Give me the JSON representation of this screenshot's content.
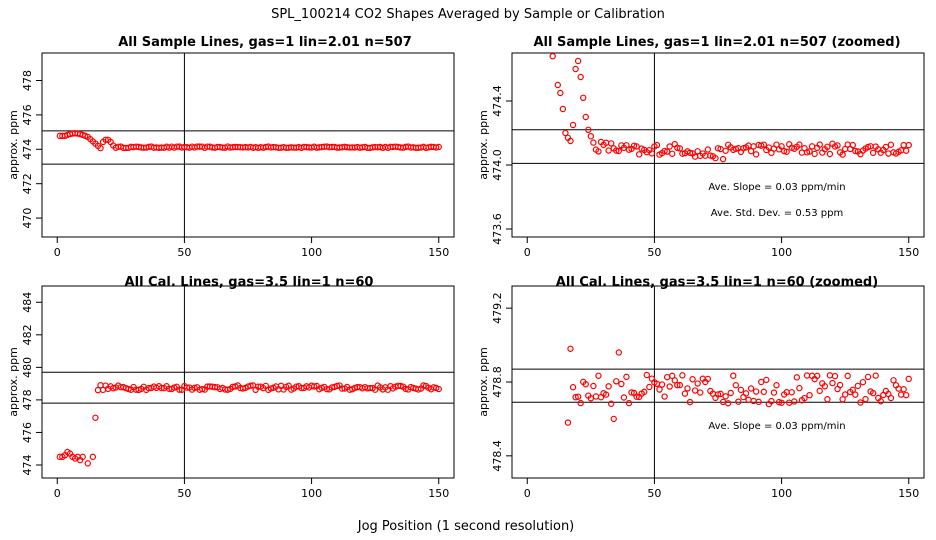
{
  "figure": {
    "title": "SPL_100214  CO2 Shapes Averaged by Sample or Calibration",
    "xlabel": "Jog Position (1 second resolution)"
  },
  "colors": {
    "points": "#ff0000",
    "lines": "#000000"
  },
  "chart_data": [
    {
      "type": "scatter",
      "title": "All Sample Lines, gas=1 lin=2.01 n=507",
      "ylabel": "approx. ppm",
      "xlim": [
        -6,
        156
      ],
      "ylim": [
        468.9,
        479.6
      ],
      "xticks": [
        "0",
        "50",
        "100",
        "150"
      ],
      "xtick_values": [
        0,
        50,
        100,
        150
      ],
      "yticks": [
        "470",
        "472",
        "474",
        "476",
        "478"
      ],
      "ytick_values": [
        470,
        472,
        474,
        476,
        478
      ],
      "vline": 50,
      "hlines": [
        475.07,
        473.14
      ],
      "annotations": [],
      "series_kind": "sample_full"
    },
    {
      "type": "scatter",
      "title": "All Sample Lines, gas=1 lin=2.01 n=507 (zoomed)",
      "ylabel": "approx. ppm",
      "xlim": [
        -6,
        156
      ],
      "ylim": [
        473.55,
        474.7
      ],
      "xticks": [
        "0",
        "50",
        "100",
        "150"
      ],
      "xtick_values": [
        0,
        50,
        100,
        150
      ],
      "yticks": [
        "473.6",
        "474.0",
        "474.4"
      ],
      "ytick_values": [
        473.6,
        474.0,
        474.4
      ],
      "vline": 50,
      "hlines": [
        474.22,
        474.01
      ],
      "annotations": [
        "Ave. Slope =  0.03  ppm/min",
        "Ave. Std. Dev. =  0.53  ppm"
      ],
      "series_kind": "sample_zoom"
    },
    {
      "type": "scatter",
      "title": "All Cal. Lines, gas=3.5 lin=1 n=60",
      "ylabel": "approx. ppm",
      "xlim": [
        -6,
        156
      ],
      "ylim": [
        473.2,
        485.0
      ],
      "xticks": [
        "0",
        "50",
        "100",
        "150"
      ],
      "xtick_values": [
        0,
        50,
        100,
        150
      ],
      "yticks": [
        "474",
        "476",
        "478",
        "480",
        "482",
        "484"
      ],
      "ytick_values": [
        474,
        476,
        478,
        480,
        482,
        484
      ],
      "vline": 50,
      "hlines": [
        479.7,
        477.8
      ],
      "annotations": [],
      "series_kind": "cal_full"
    },
    {
      "type": "scatter",
      "title": "All Cal. Lines, gas=3.5 lin=1 n=60 (zoomed)",
      "ylabel": "approx. ppm",
      "xlim": [
        -6,
        156
      ],
      "ylim": [
        478.28,
        479.32
      ],
      "xticks": [
        "0",
        "50",
        "100",
        "150"
      ],
      "xtick_values": [
        0,
        50,
        100,
        150
      ],
      "yticks": [
        "478.4",
        "478.8",
        "479.2"
      ],
      "ytick_values": [
        478.4,
        478.8,
        479.2
      ],
      "vline": 50,
      "hlines": [
        478.87,
        478.69
      ],
      "annotations": [
        "Ave. Slope =  0.03  ppm/min"
      ],
      "series_kind": "cal_zoom"
    }
  ]
}
